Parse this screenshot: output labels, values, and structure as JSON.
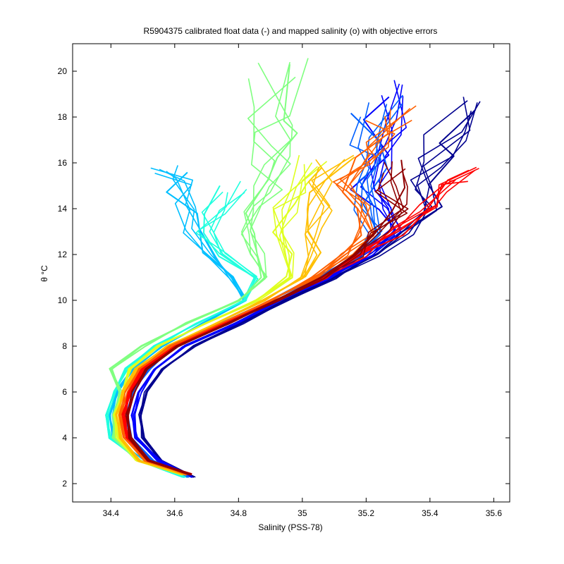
{
  "chart_data": {
    "type": "line",
    "title": "R5904375 calibrated float data (-) and mapped salinity (o) with objective errors",
    "xlabel": "Salinity (PSS-78)",
    "ylabel": "θ °C",
    "xlim": [
      34.28,
      35.65
    ],
    "ylim": [
      1.2,
      21.2
    ],
    "xticks": [
      34.4,
      34.6,
      34.8,
      35.0,
      35.2,
      35.4,
      35.6
    ],
    "xtick_labels": [
      "34.4",
      "34.6",
      "34.8",
      "35",
      "35.2",
      "35.4",
      "35.6"
    ],
    "yticks": [
      2,
      4,
      6,
      8,
      10,
      12,
      14,
      16,
      18,
      20
    ],
    "ytick_labels": [
      "2",
      "4",
      "6",
      "8",
      "10",
      "12",
      "14",
      "16",
      "18",
      "20"
    ],
    "grid": false,
    "colormap": "jet (profile number)",
    "colors": [
      "#00008f",
      "#0000ff",
      "#0060ff",
      "#00bfff",
      "#20ffdf",
      "#80ff80",
      "#dfff20",
      "#ffbf00",
      "#ff6000",
      "#ff0000",
      "#8f0000"
    ],
    "series": [
      {
        "color": "#00008f",
        "values": [
          [
            34.66,
            2.3
          ],
          [
            34.56,
            3.0
          ],
          [
            34.5,
            4.0
          ],
          [
            34.49,
            5.0
          ],
          [
            34.51,
            6.0
          ],
          [
            34.56,
            7.0
          ],
          [
            34.66,
            8.0
          ],
          [
            34.81,
            9.0
          ],
          [
            34.95,
            10.0
          ],
          [
            35.1,
            11.0
          ],
          [
            35.22,
            12.0
          ],
          [
            35.34,
            13.0
          ],
          [
            35.4,
            14.0
          ],
          [
            35.38,
            15.0
          ],
          [
            35.42,
            16.0
          ],
          [
            35.45,
            17.0
          ],
          [
            35.48,
            18.5
          ]
        ]
      },
      {
        "color": "#0000ff",
        "values": [
          [
            34.65,
            2.3
          ],
          [
            34.55,
            3.0
          ],
          [
            34.48,
            4.0
          ],
          [
            34.47,
            5.0
          ],
          [
            34.49,
            6.0
          ],
          [
            34.54,
            7.0
          ],
          [
            34.63,
            8.0
          ],
          [
            34.79,
            9.0
          ],
          [
            34.93,
            10.0
          ],
          [
            35.08,
            11.0
          ],
          [
            35.2,
            12.0
          ],
          [
            35.28,
            13.0
          ],
          [
            35.25,
            14.0
          ],
          [
            35.2,
            15.0
          ],
          [
            35.23,
            16.0
          ],
          [
            35.25,
            17.5
          ],
          [
            35.27,
            19.3
          ]
        ]
      },
      {
        "color": "#0060ff",
        "values": [
          [
            34.64,
            2.3
          ],
          [
            34.53,
            3.0
          ],
          [
            34.46,
            4.0
          ],
          [
            34.45,
            5.0
          ],
          [
            34.47,
            6.0
          ],
          [
            34.52,
            7.0
          ],
          [
            34.6,
            8.0
          ],
          [
            34.75,
            9.0
          ],
          [
            34.9,
            10.0
          ],
          [
            35.05,
            11.0
          ],
          [
            35.17,
            12.0
          ],
          [
            35.22,
            13.0
          ],
          [
            35.2,
            14.0
          ],
          [
            35.18,
            15.0
          ],
          [
            35.2,
            16.0
          ],
          [
            35.22,
            17.0
          ],
          [
            35.24,
            18.5
          ]
        ]
      },
      {
        "color": "#00bfff",
        "values": [
          [
            34.63,
            2.3
          ],
          [
            34.5,
            3.0
          ],
          [
            34.41,
            4.0
          ],
          [
            34.4,
            5.0
          ],
          [
            34.42,
            6.0
          ],
          [
            34.47,
            7.0
          ],
          [
            34.56,
            8.0
          ],
          [
            34.69,
            9.0
          ],
          [
            34.82,
            10.0
          ],
          [
            34.78,
            11.0
          ],
          [
            34.71,
            12.0
          ],
          [
            34.65,
            13.0
          ],
          [
            34.63,
            14.0
          ],
          [
            34.61,
            15.0
          ],
          [
            34.58,
            15.6
          ]
        ]
      },
      {
        "color": "#20ffdf",
        "values": [
          [
            34.63,
            2.3
          ],
          [
            34.49,
            3.0
          ],
          [
            34.4,
            4.0
          ],
          [
            34.39,
            5.0
          ],
          [
            34.41,
            6.0
          ],
          [
            34.45,
            7.0
          ],
          [
            34.54,
            8.0
          ],
          [
            34.67,
            9.0
          ],
          [
            34.82,
            10.0
          ],
          [
            34.85,
            11.0
          ],
          [
            34.75,
            12.0
          ],
          [
            34.7,
            13.0
          ],
          [
            34.72,
            14.0
          ],
          [
            34.78,
            15.0
          ]
        ]
      },
      {
        "color": "#80ff80",
        "values": [
          [
            34.62,
            2.4
          ],
          [
            34.48,
            3.0
          ],
          [
            34.41,
            4.0
          ],
          [
            34.41,
            5.0
          ],
          [
            34.43,
            6.0
          ],
          [
            34.4,
            7.0
          ],
          [
            34.5,
            8.0
          ],
          [
            34.64,
            9.0
          ],
          [
            34.8,
            10.0
          ],
          [
            34.88,
            11.0
          ],
          [
            34.86,
            12.0
          ],
          [
            34.84,
            13.0
          ],
          [
            34.86,
            14.0
          ],
          [
            34.9,
            15.0
          ],
          [
            34.9,
            16.0
          ],
          [
            34.92,
            17.0
          ],
          [
            34.9,
            18.0
          ],
          [
            34.92,
            20.0
          ]
        ]
      },
      {
        "color": "#dfff20",
        "values": [
          [
            34.62,
            2.4
          ],
          [
            34.48,
            3.0
          ],
          [
            34.42,
            4.0
          ],
          [
            34.41,
            5.0
          ],
          [
            34.44,
            6.0
          ],
          [
            34.46,
            7.0
          ],
          [
            34.55,
            8.0
          ],
          [
            34.7,
            9.0
          ],
          [
            34.86,
            10.0
          ],
          [
            34.96,
            11.0
          ],
          [
            34.96,
            12.0
          ],
          [
            34.92,
            13.0
          ],
          [
            34.95,
            14.0
          ],
          [
            35.0,
            15.0
          ],
          [
            35.02,
            16.0
          ]
        ]
      },
      {
        "color": "#ffbf00",
        "values": [
          [
            34.63,
            2.4
          ],
          [
            34.49,
            3.0
          ],
          [
            34.43,
            4.0
          ],
          [
            34.42,
            5.0
          ],
          [
            34.44,
            6.0
          ],
          [
            34.48,
            7.0
          ],
          [
            34.58,
            8.0
          ],
          [
            34.73,
            9.0
          ],
          [
            34.88,
            10.0
          ],
          [
            35.0,
            11.0
          ],
          [
            35.04,
            12.0
          ],
          [
            35.03,
            13.0
          ],
          [
            35.05,
            14.0
          ],
          [
            35.07,
            15.0
          ],
          [
            35.1,
            16.0
          ]
        ]
      },
      {
        "color": "#ff6000",
        "values": [
          [
            34.64,
            2.4
          ],
          [
            34.51,
            3.0
          ],
          [
            34.44,
            4.0
          ],
          [
            34.43,
            5.0
          ],
          [
            34.45,
            6.0
          ],
          [
            34.49,
            7.0
          ],
          [
            34.59,
            8.0
          ],
          [
            34.75,
            9.0
          ],
          [
            34.9,
            10.0
          ],
          [
            35.04,
            11.0
          ],
          [
            35.14,
            12.0
          ],
          [
            35.2,
            13.0
          ],
          [
            35.17,
            14.0
          ],
          [
            35.15,
            15.0
          ],
          [
            35.18,
            16.0
          ],
          [
            35.22,
            17.0
          ],
          [
            35.28,
            18.2
          ]
        ]
      },
      {
        "color": "#ff0000",
        "values": [
          [
            34.65,
            2.4
          ],
          [
            34.52,
            3.0
          ],
          [
            34.45,
            4.0
          ],
          [
            34.44,
            5.0
          ],
          [
            34.46,
            6.0
          ],
          [
            34.5,
            7.0
          ],
          [
            34.6,
            8.0
          ],
          [
            34.76,
            9.0
          ],
          [
            34.92,
            10.0
          ],
          [
            35.07,
            11.0
          ],
          [
            35.19,
            12.0
          ],
          [
            35.3,
            13.0
          ],
          [
            35.4,
            14.0
          ],
          [
            35.46,
            15.0
          ],
          [
            35.5,
            15.5
          ]
        ]
      },
      {
        "color": "#8f0000",
        "values": [
          [
            34.65,
            2.4
          ],
          [
            34.52,
            3.0
          ],
          [
            34.46,
            4.0
          ],
          [
            34.45,
            5.0
          ],
          [
            34.47,
            6.0
          ],
          [
            34.51,
            7.0
          ],
          [
            34.61,
            8.0
          ],
          [
            34.77,
            9.0
          ],
          [
            34.92,
            10.0
          ],
          [
            35.06,
            11.0
          ],
          [
            35.17,
            12.0
          ],
          [
            35.24,
            13.0
          ],
          [
            35.3,
            14.0
          ],
          [
            35.28,
            15.0
          ],
          [
            35.3,
            15.8
          ]
        ]
      }
    ]
  }
}
